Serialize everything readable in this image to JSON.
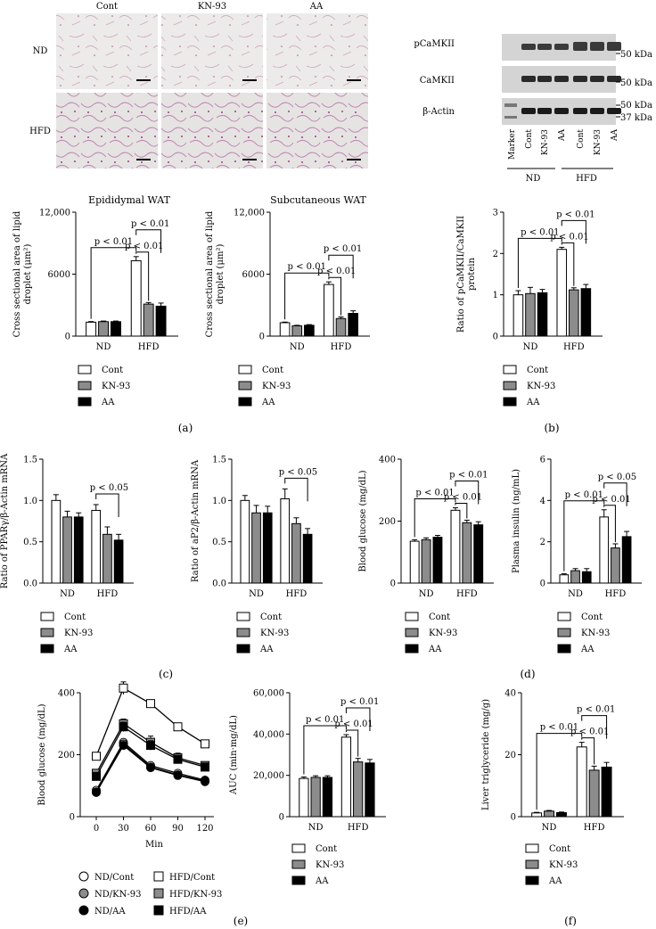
{
  "panel_labels": {
    "a": "(a)",
    "b": "(b)",
    "c": "(c)",
    "d": "(d)",
    "e": "(e)",
    "f": "(f)"
  },
  "legend": {
    "cont": "Cont",
    "kn93": "KN-93",
    "aa": "AA"
  },
  "groups": {
    "nd": "ND",
    "hfd": "HFD"
  },
  "colors": {
    "cont": "#ffffff",
    "kn93": "#8c8c8c",
    "aa": "#000000"
  },
  "micrographs": {
    "columns": [
      "Cont",
      "KN-93",
      "AA"
    ],
    "rows": [
      "ND",
      "HFD"
    ]
  },
  "western_blot": {
    "bands": [
      "pCaMKII",
      "CaMKII",
      "β-Actin"
    ],
    "kda_labels": {
      "p": "50 kDa",
      "c": "50 kDa",
      "a1": "50 kDa",
      "a2": "37 kDa"
    },
    "lanes": [
      "Marker",
      "Cont",
      "KN-93",
      "AA",
      "Cont",
      "KN-93",
      "AA"
    ],
    "group_labels": [
      "ND",
      "HFD"
    ]
  },
  "egtt_legend": {
    "nd_cont": "ND/Cont",
    "nd_kn": "ND/KN-93",
    "nd_aa": "ND/AA",
    "hfd_cont": "HFD/Cont",
    "hfd_kn": "HFD/KN-93",
    "hfd_aa": "HFD/AA"
  },
  "chart_data": [
    {
      "id": "a1",
      "type": "bar",
      "title": "Epididymal WAT",
      "ylabel_lines": [
        "Cross sectional area of lipid",
        "droplet (μm²)"
      ],
      "ylim": [
        0,
        12000
      ],
      "yticks": [
        0,
        6000,
        12000
      ],
      "ytick_labels": [
        "0",
        "6000",
        "12,000"
      ],
      "categories": [
        "ND",
        "HFD"
      ],
      "series": [
        {
          "name": "Cont",
          "values": [
            1350,
            7300
          ],
          "err": [
            60,
            400
          ]
        },
        {
          "name": "KN-93",
          "values": [
            1400,
            3100
          ],
          "err": [
            60,
            150
          ]
        },
        {
          "name": "AA",
          "values": [
            1400,
            2900
          ],
          "err": [
            60,
            300
          ]
        }
      ],
      "brackets": [
        {
          "label": "p < 0.01",
          "from": 0,
          "to": 3,
          "level": 0
        },
        {
          "label": "p < 0.01",
          "from": 3,
          "to": 4,
          "level": 0
        },
        {
          "label": "p < 0.01",
          "from": 3,
          "to": 5,
          "level": 1
        }
      ]
    },
    {
      "id": "a2",
      "type": "bar",
      "title": "Subcutaneous WAT",
      "ylabel_lines": [
        "Cross sectional area of lipid",
        "droplet (μm²)"
      ],
      "ylim": [
        0,
        12000
      ],
      "yticks": [
        0,
        6000,
        12000
      ],
      "ytick_labels": [
        "0",
        "6000",
        "12,000"
      ],
      "categories": [
        "ND",
        "HFD"
      ],
      "series": [
        {
          "name": "Cont",
          "values": [
            1300,
            5000
          ],
          "err": [
            60,
            250
          ]
        },
        {
          "name": "KN-93",
          "values": [
            1000,
            1700
          ],
          "err": [
            50,
            150
          ]
        },
        {
          "name": "AA",
          "values": [
            1050,
            2200
          ],
          "err": [
            60,
            250
          ]
        }
      ],
      "brackets": [
        {
          "label": "p < 0.01",
          "from": 0,
          "to": 3,
          "level": 0
        },
        {
          "label": "p < 0.01",
          "from": 3,
          "to": 4,
          "level": 0
        },
        {
          "label": "p < 0.01",
          "from": 3,
          "to": 5,
          "level": 1
        }
      ]
    },
    {
      "id": "b",
      "type": "bar",
      "title": "",
      "ylabel_lines": [
        "Ratio of pCaMKII/CaMKII",
        "protein"
      ],
      "ylim": [
        0,
        3
      ],
      "yticks": [
        0,
        1,
        2,
        3
      ],
      "ytick_labels": [
        "0",
        "1",
        "2",
        "3"
      ],
      "categories": [
        "ND",
        "HFD"
      ],
      "series": [
        {
          "name": "Cont",
          "values": [
            1.0,
            2.1
          ],
          "err": [
            0.1,
            0.05
          ]
        },
        {
          "name": "KN-93",
          "values": [
            1.03,
            1.12
          ],
          "err": [
            0.15,
            0.05
          ]
        },
        {
          "name": "AA",
          "values": [
            1.05,
            1.15
          ],
          "err": [
            0.08,
            0.1
          ]
        }
      ],
      "brackets": [
        {
          "label": "p < 0.01",
          "from": 0,
          "to": 3,
          "level": 0
        },
        {
          "label": "p < 0.01",
          "from": 3,
          "to": 4,
          "level": 0
        },
        {
          "label": "p < 0.01",
          "from": 3,
          "to": 5,
          "level": 1
        }
      ]
    },
    {
      "id": "c1",
      "type": "bar",
      "title": "",
      "ylabel_lines": [
        "Ratio of PPARγ/β-Actin mRNA"
      ],
      "ylim": [
        0,
        1.5
      ],
      "yticks": [
        0,
        0.5,
        1,
        1.5
      ],
      "ytick_labels": [
        "0.0",
        "0.5",
        "1.0",
        "1.5"
      ],
      "categories": [
        "ND",
        "HFD"
      ],
      "series": [
        {
          "name": "Cont",
          "values": [
            1.0,
            0.88
          ],
          "err": [
            0.07,
            0.07
          ]
        },
        {
          "name": "KN-93",
          "values": [
            0.8,
            0.59
          ],
          "err": [
            0.07,
            0.09
          ]
        },
        {
          "name": "AA",
          "values": [
            0.8,
            0.52
          ],
          "err": [
            0.05,
            0.07
          ]
        }
      ],
      "brackets": [
        {
          "label": "p < 0.05",
          "from": 3,
          "to": 5,
          "level": 0
        }
      ]
    },
    {
      "id": "c2",
      "type": "bar",
      "title": "",
      "ylabel_lines": [
        "Ratio of aP2/β-Actin mRNA"
      ],
      "ylim": [
        0,
        1.5
      ],
      "yticks": [
        0,
        0.5,
        1,
        1.5
      ],
      "ytick_labels": [
        "0.0",
        "0.5",
        "1.0",
        "1.5"
      ],
      "categories": [
        "ND",
        "HFD"
      ],
      "series": [
        {
          "name": "Cont",
          "values": [
            1.0,
            1.02
          ],
          "err": [
            0.06,
            0.12
          ]
        },
        {
          "name": "KN-93",
          "values": [
            0.85,
            0.72
          ],
          "err": [
            0.09,
            0.07
          ]
        },
        {
          "name": "AA",
          "values": [
            0.85,
            0.59
          ],
          "err": [
            0.08,
            0.07
          ]
        }
      ],
      "brackets": [
        {
          "label": "p < 0.05",
          "from": 3,
          "to": 5,
          "level": 0
        }
      ]
    },
    {
      "id": "d1",
      "type": "bar",
      "title": "",
      "ylabel_lines": [
        "Blood glucose (mg/dL)"
      ],
      "ylim": [
        0,
        400
      ],
      "yticks": [
        0,
        200,
        400
      ],
      "ytick_labels": [
        "0",
        "200",
        "400"
      ],
      "categories": [
        "ND",
        "HFD"
      ],
      "series": [
        {
          "name": "Cont",
          "values": [
            135,
            235
          ],
          "err": [
            5,
            8
          ]
        },
        {
          "name": "KN-93",
          "values": [
            140,
            195
          ],
          "err": [
            6,
            8
          ]
        },
        {
          "name": "AA",
          "values": [
            148,
            188
          ],
          "err": [
            6,
            10
          ]
        }
      ],
      "brackets": [
        {
          "label": "p < 0.01",
          "from": 0,
          "to": 3,
          "level": 0
        },
        {
          "label": "p < 0.01",
          "from": 3,
          "to": 4,
          "level": 0
        },
        {
          "label": "p < 0.01",
          "from": 3,
          "to": 5,
          "level": 1
        }
      ]
    },
    {
      "id": "d2",
      "type": "bar",
      "title": "",
      "ylabel_lines": [
        "Plasma insulin (ng/mL)"
      ],
      "ylim": [
        0,
        6
      ],
      "yticks": [
        0,
        2,
        4,
        6
      ],
      "ytick_labels": [
        "0",
        "2",
        "4",
        "6"
      ],
      "categories": [
        "ND",
        "HFD"
      ],
      "series": [
        {
          "name": "Cont",
          "values": [
            0.4,
            3.2
          ],
          "err": [
            0.05,
            0.35
          ]
        },
        {
          "name": "KN-93",
          "values": [
            0.6,
            1.7
          ],
          "err": [
            0.1,
            0.2
          ]
        },
        {
          "name": "AA",
          "values": [
            0.55,
            2.25
          ],
          "err": [
            0.15,
            0.25
          ]
        }
      ],
      "brackets": [
        {
          "label": "p < 0.01",
          "from": 0,
          "to": 3,
          "level": 0
        },
        {
          "label": "p < 0.01",
          "from": 3,
          "to": 4,
          "level": 0
        },
        {
          "label": "p < 0.05",
          "from": 3,
          "to": 5,
          "level": 1
        }
      ]
    },
    {
      "id": "e1",
      "type": "line",
      "title": "",
      "ylabel_lines": [
        "Blood glucose (mg/dL)"
      ],
      "xlabel": "Min",
      "ylim": [
        0,
        400
      ],
      "yticks": [
        0,
        200,
        400
      ],
      "ytick_labels": [
        "0",
        "200",
        "400"
      ],
      "x": [
        0,
        30,
        60,
        90,
        120
      ],
      "xtick_labels": [
        "0",
        "30",
        "60",
        "90",
        "120"
      ],
      "series": [
        {
          "name": "HFD/Cont",
          "values": [
            195,
            415,
            365,
            290,
            235
          ],
          "err": [
            8,
            20,
            12,
            8,
            8
          ],
          "marker": "square",
          "fill": "#ffffff"
        },
        {
          "name": "HFD/KN-93",
          "values": [
            140,
            300,
            240,
            190,
            165
          ],
          "err": [
            8,
            15,
            20,
            15,
            10
          ],
          "marker": "square",
          "fill": "#8c8c8c"
        },
        {
          "name": "HFD/AA",
          "values": [
            130,
            290,
            230,
            185,
            160
          ],
          "err": [
            8,
            15,
            15,
            10,
            8
          ],
          "marker": "square",
          "fill": "#000000"
        },
        {
          "name": "ND/Cont",
          "values": [
            85,
            240,
            165,
            140,
            118
          ],
          "err": [
            6,
            10,
            10,
            8,
            6
          ],
          "marker": "circle",
          "fill": "#ffffff"
        },
        {
          "name": "ND/KN-93",
          "values": [
            80,
            235,
            160,
            135,
            115
          ],
          "err": [
            6,
            10,
            8,
            6,
            6
          ],
          "marker": "circle",
          "fill": "#8c8c8c"
        },
        {
          "name": "ND/AA",
          "values": [
            78,
            230,
            158,
            133,
            113
          ],
          "err": [
            6,
            10,
            8,
            6,
            6
          ],
          "marker": "circle",
          "fill": "#000000"
        }
      ]
    },
    {
      "id": "e2",
      "type": "bar",
      "title": "",
      "ylabel_lines": [
        "AUC (min·mg/dL)"
      ],
      "ylim": [
        0,
        60000
      ],
      "yticks": [
        0,
        20000,
        40000,
        60000
      ],
      "ytick_labels": [
        "0",
        "20,000",
        "40,000",
        "60,000"
      ],
      "categories": [
        "ND",
        "HFD"
      ],
      "series": [
        {
          "name": "Cont",
          "values": [
            18500,
            38500
          ],
          "err": [
            700,
            1200
          ]
        },
        {
          "name": "KN-93",
          "values": [
            19000,
            26500
          ],
          "err": [
            800,
            1700
          ]
        },
        {
          "name": "AA",
          "values": [
            19000,
            26000
          ],
          "err": [
            800,
            1700
          ]
        }
      ],
      "brackets": [
        {
          "label": "p < 0.01",
          "from": 0,
          "to": 3,
          "level": 0
        },
        {
          "label": "p < 0.01",
          "from": 3,
          "to": 4,
          "level": 0
        },
        {
          "label": "p < 0.01",
          "from": 3,
          "to": 5,
          "level": 1
        }
      ]
    },
    {
      "id": "f",
      "type": "bar",
      "title": "",
      "ylabel_lines": [
        "Liver triglyceride (mg/g)"
      ],
      "ylim": [
        0,
        40
      ],
      "yticks": [
        0,
        20,
        40
      ],
      "ytick_labels": [
        "0",
        "20",
        "40"
      ],
      "categories": [
        "ND",
        "HFD"
      ],
      "series": [
        {
          "name": "Cont",
          "values": [
            1.2,
            22.5
          ],
          "err": [
            0.2,
            1.5
          ]
        },
        {
          "name": "KN-93",
          "values": [
            1.8,
            15
          ],
          "err": [
            0.2,
            1.3
          ]
        },
        {
          "name": "AA",
          "values": [
            1.3,
            16
          ],
          "err": [
            0.2,
            1.5
          ]
        }
      ],
      "brackets": [
        {
          "label": "p < 0.01",
          "from": 0,
          "to": 3,
          "level": 0
        },
        {
          "label": "p < 0.01",
          "from": 3,
          "to": 4,
          "level": 0
        },
        {
          "label": "p < 0.01",
          "from": 3,
          "to": 5,
          "level": 1
        }
      ]
    }
  ]
}
